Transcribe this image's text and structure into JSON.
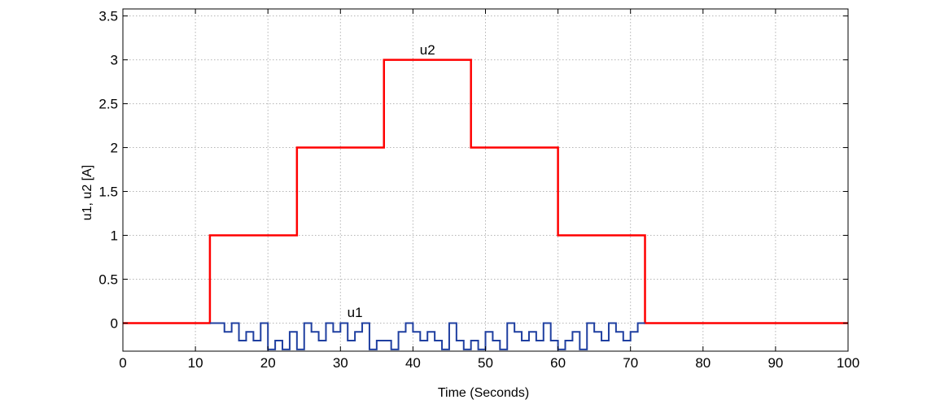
{
  "chart_data": {
    "type": "line",
    "title": "",
    "xlabel": "Time (Seconds)",
    "ylabel": "u1, u2 [A]",
    "xlim": [
      0,
      100
    ],
    "ylim": [
      -0.32,
      3.58
    ],
    "xticks": [
      0,
      10,
      20,
      30,
      40,
      50,
      60,
      70,
      80,
      90,
      100
    ],
    "yticks": [
      0,
      0.5,
      1,
      1.5,
      2,
      2.5,
      3,
      3.5
    ],
    "xtick_labels": [
      "0",
      "10",
      "20",
      "30",
      "40",
      "50",
      "60",
      "70",
      "80",
      "90",
      "100"
    ],
    "ytick_labels": [
      "0",
      "0.5",
      "1",
      "1.5",
      "2",
      "2.5",
      "3",
      "3.5"
    ],
    "grid": true,
    "legend": "none",
    "annotations": [
      {
        "text": "u2",
        "x": 42,
        "y": 3.06
      },
      {
        "text": "u1",
        "x": 32,
        "y": 0.07
      }
    ],
    "series": [
      {
        "name": "u2",
        "color": "#ff0000",
        "step": true,
        "x": [
          0,
          12,
          24,
          36,
          48,
          60,
          72,
          100
        ],
        "y": [
          0,
          1,
          2,
          3,
          2,
          1,
          0,
          0
        ]
      },
      {
        "name": "u1",
        "color": "#1f3fa0",
        "step": true,
        "x": [
          12,
          14,
          15,
          16,
          17,
          18,
          19,
          20,
          21,
          22,
          23,
          24,
          25,
          26,
          27,
          28,
          29,
          30,
          31,
          32,
          33,
          34,
          35,
          36,
          37,
          38,
          39,
          40,
          41,
          42,
          43,
          44,
          45,
          46,
          47,
          48,
          49,
          50,
          51,
          52,
          53,
          54,
          55,
          56,
          57,
          58,
          59,
          60,
          61,
          62,
          63,
          64,
          65,
          66,
          67,
          68,
          69,
          70,
          71,
          72
        ],
        "y": [
          0,
          -0.1,
          0,
          -0.2,
          -0.1,
          -0.2,
          0,
          -0.3,
          -0.2,
          -0.3,
          -0.1,
          -0.3,
          0,
          -0.1,
          -0.2,
          0,
          -0.1,
          0,
          -0.2,
          -0.1,
          0,
          -0.3,
          -0.2,
          -0.2,
          -0.3,
          -0.1,
          0,
          -0.1,
          -0.2,
          -0.1,
          -0.2,
          -0.3,
          0,
          -0.2,
          -0.3,
          -0.2,
          -0.3,
          -0.1,
          -0.2,
          -0.3,
          0,
          -0.1,
          -0.2,
          -0.1,
          -0.2,
          0,
          -0.2,
          -0.3,
          -0.2,
          -0.1,
          -0.3,
          0,
          -0.1,
          -0.2,
          0,
          -0.1,
          -0.2,
          -0.1,
          0,
          0
        ]
      }
    ]
  }
}
